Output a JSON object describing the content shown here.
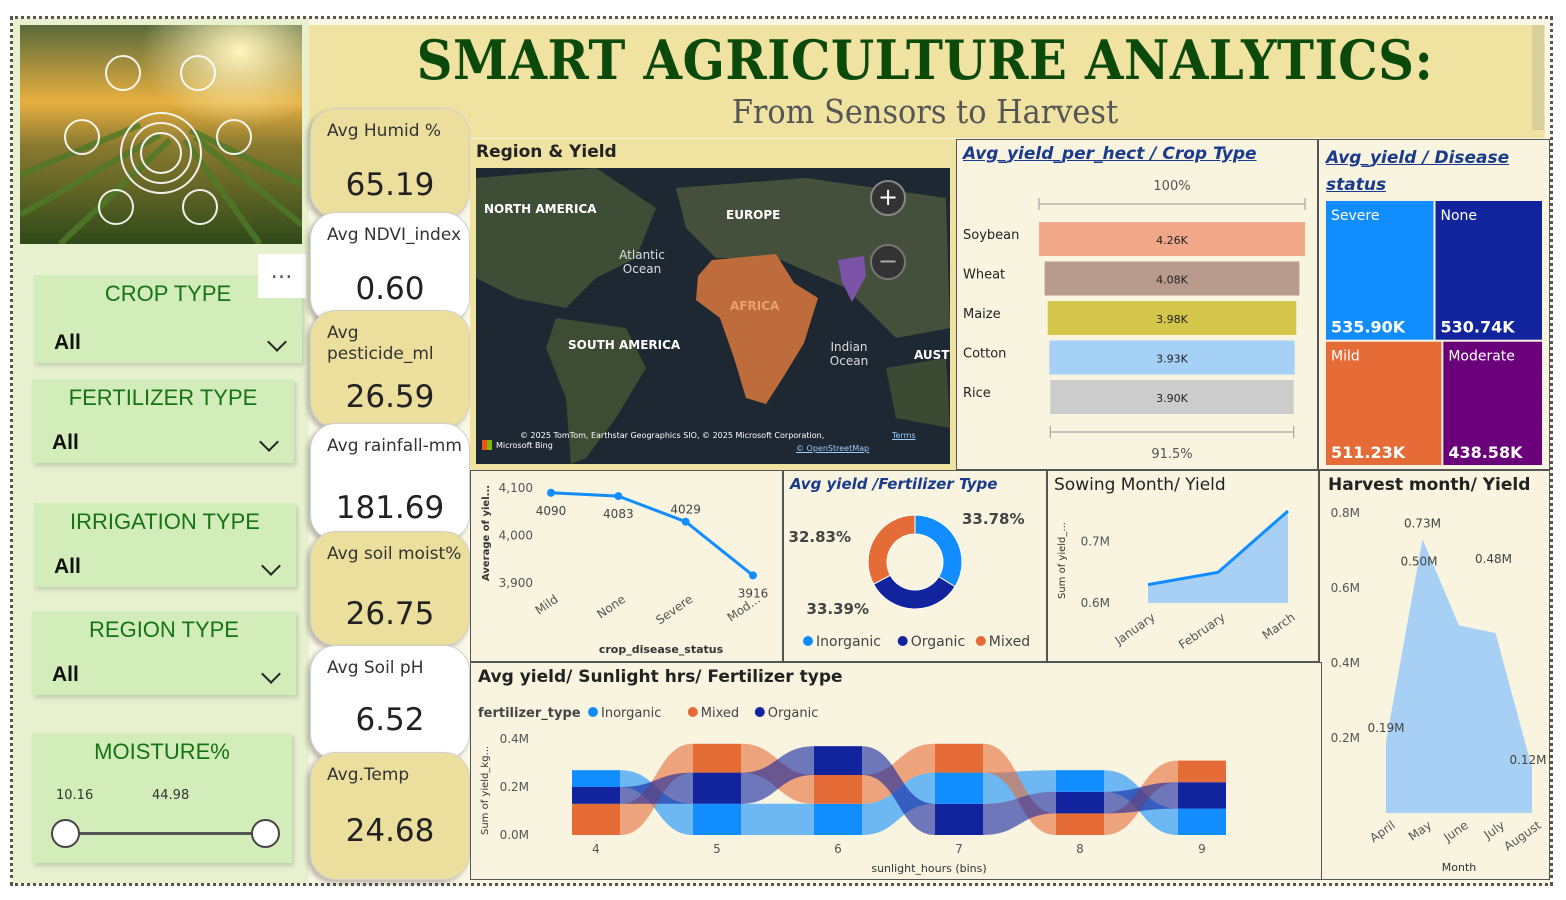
{
  "title": "SMART AGRICULTURE ANALYTICS:",
  "subtitle": "From Sensors to Harvest",
  "slicers": [
    {
      "label": "CROP TYPE",
      "value": "All"
    },
    {
      "label": "FERTILIZER TYPE",
      "value": "All"
    },
    {
      "label": "IRRIGATION TYPE",
      "value": "All"
    },
    {
      "label": "REGION TYPE",
      "value": "All"
    }
  ],
  "moisture": {
    "label": "MOISTURE%",
    "min": "10.16",
    "max": "44.98"
  },
  "ellipsis": "…",
  "kpis": [
    {
      "label": "Avg Humid %",
      "value": "65.19"
    },
    {
      "label": "Avg NDVI_index",
      "value": "0.60"
    },
    {
      "label": "Avg pesticide_ml",
      "value": "26.59"
    },
    {
      "label": "Avg rainfall-mm",
      "value": "181.69"
    },
    {
      "label": "Avg soil moist%",
      "value": "26.75"
    },
    {
      "label": "Avg Soil pH",
      "value": "6.52"
    },
    {
      "label": "Avg.Temp",
      "value": "24.68"
    }
  ],
  "map": {
    "title": "Region & Yield",
    "labels": [
      "NORTH AMERICA",
      "EUROPE",
      "Atlantic Ocean",
      "AFRICA",
      "SOUTH AMERICA",
      "Indian Ocean",
      "AUST"
    ],
    "attribution": "© 2025 TomTom, Earthstar Geographics SIO, © 2025 Microsoft Corporation,",
    "terms": "Terms",
    "osm": "© OpenStreetMap",
    "bing": "Microsoft Bing",
    "colors": {
      "africa": "#c8703d",
      "india": "#7a52a8"
    }
  },
  "chart_data": [
    {
      "id": "crop",
      "type": "bar",
      "title": "Avg_yield_per_hect / Crop Type",
      "top_label": "100%",
      "bottom_label": "91.5%",
      "categories": [
        "Soybean",
        "Wheat",
        "Maize",
        "Cotton",
        "Rice"
      ],
      "values": [
        4260,
        4080,
        3980,
        3930,
        3900
      ],
      "labels": [
        "4.26K",
        "4.08K",
        "3.98K",
        "3.93K",
        "3.90K"
      ],
      "colors": [
        "#f0a888",
        "#b89b8c",
        "#d4c64a",
        "#a6d1f7",
        "#cccccc"
      ]
    },
    {
      "id": "disease",
      "type": "treemap",
      "title": "Avg_yield / Disease status",
      "categories": [
        "Severe",
        "None",
        "Mild",
        "Moderate"
      ],
      "values": [
        535900,
        530740,
        511230,
        438580
      ],
      "labels": [
        "535.90K",
        "530.74K",
        "511.23K",
        "438.58K"
      ],
      "colors": [
        "#118dff",
        "#12239e",
        "#e66c37",
        "#6b007b"
      ]
    },
    {
      "id": "disease_line",
      "type": "line",
      "categories": [
        "Mild",
        "None",
        "Severe",
        "Mod..."
      ],
      "values": [
        4090,
        4083,
        4029,
        3916
      ],
      "ylim": [
        3900,
        4100
      ],
      "yticks": [
        "4,100",
        "4,000",
        "3,900"
      ],
      "ylabel": "Average of yiel...",
      "xlabel": "crop_disease_status",
      "color": "#118dff"
    },
    {
      "id": "fertilizer",
      "type": "pie",
      "title": "Avg yield /Fertilizer Type",
      "categories": [
        "Inorganic",
        "Organic",
        "Mixed"
      ],
      "values": [
        33.78,
        33.39,
        32.83
      ],
      "labels": [
        "33.78%",
        "33.39%",
        "32.83%"
      ],
      "colors": [
        "#118dff",
        "#12239e",
        "#e66c37"
      ]
    },
    {
      "id": "sowing",
      "type": "area",
      "title": "Sowing Month/ Yield",
      "categories": [
        "January",
        "February",
        "March"
      ],
      "values": [
        0.63,
        0.65,
        0.75
      ],
      "ylim": [
        0.6,
        0.75
      ],
      "yticks": [
        "0.7M",
        "0.6M"
      ],
      "ylabel": "Sum of yield_...",
      "color": "#118dff"
    },
    {
      "id": "harvest",
      "type": "area",
      "title": "Harvest month/ Yield",
      "categories": [
        "April",
        "May",
        "June",
        "July",
        "August"
      ],
      "values": [
        0.19,
        0.73,
        0.5,
        0.48,
        0.12
      ],
      "labels": [
        "0.19M",
        "0.73M",
        "0.50M",
        "0.48M",
        "0.12M"
      ],
      "ylim": [
        0,
        0.8
      ],
      "yticks": [
        "0.8M",
        "0.6M",
        "0.4M",
        "0.2M"
      ],
      "xlabel": "Month",
      "color": "#a8d0f4"
    },
    {
      "id": "sunlight",
      "type": "ribbon",
      "title": "Avg yield/ Sunlight hrs/ Fertilizer type",
      "legend_title": "fertilizer_type",
      "series": [
        {
          "name": "Inorganic",
          "color": "#118dff"
        },
        {
          "name": "Mixed",
          "color": "#e66c37"
        },
        {
          "name": "Organic",
          "color": "#12239e"
        }
      ],
      "categories": [
        "4",
        "5",
        "6",
        "7",
        "8",
        "9"
      ],
      "stacks": [
        {
          "order": [
            "Mixed",
            "Organic",
            "Inorganic"
          ],
          "values": [
            0.13,
            0.07,
            0.07
          ]
        },
        {
          "order": [
            "Inorganic",
            "Organic",
            "Mixed"
          ],
          "values": [
            0.13,
            0.13,
            0.12
          ]
        },
        {
          "order": [
            "Inorganic",
            "Mixed",
            "Organic"
          ],
          "values": [
            0.13,
            0.12,
            0.12
          ]
        },
        {
          "order": [
            "Organic",
            "Inorganic",
            "Mixed"
          ],
          "values": [
            0.13,
            0.13,
            0.12
          ]
        },
        {
          "order": [
            "Mixed",
            "Organic",
            "Inorganic"
          ],
          "values": [
            0.09,
            0.09,
            0.09
          ]
        },
        {
          "order": [
            "Inorganic",
            "Organic",
            "Mixed"
          ],
          "values": [
            0.11,
            0.11,
            0.09
          ]
        }
      ],
      "ylim": [
        0,
        0.4
      ],
      "yticks": [
        "0.4M",
        "0.2M",
        "0.0M"
      ],
      "ylabel": "Sum of yield_kg...",
      "xlabel": "sunlight_hours (bins)"
    }
  ]
}
